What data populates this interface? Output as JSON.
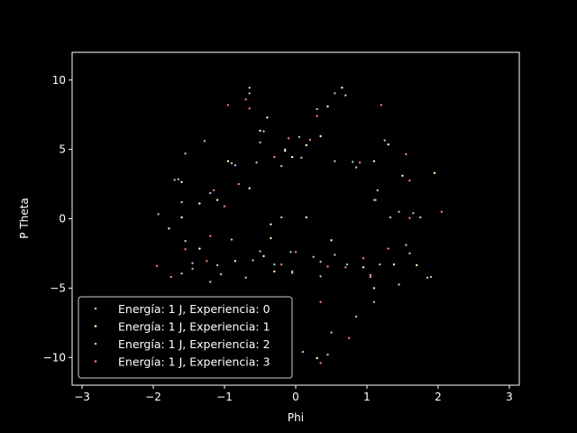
{
  "chart_data": {
    "type": "scatter",
    "xlabel": "Phi",
    "ylabel": "P Theta",
    "xlim": [
      -3.14,
      3.14
    ],
    "ylim": [
      -12,
      12
    ],
    "xticks": [
      -3,
      -2,
      -1,
      0,
      1,
      2,
      3
    ],
    "yticks": [
      -10,
      -5,
      0,
      5,
      10
    ],
    "grid": false,
    "legend_position": "lower-left",
    "background": "#000000",
    "foreground": "#ffffff",
    "series": [
      {
        "name": "Energía: 1 J, Experiencia: 0",
        "color": "#8dd3c7",
        "points": [
          [
            -1.93,
            0.33
          ],
          [
            -1.55,
            -1.6
          ],
          [
            -1.45,
            -3.6
          ],
          [
            -1.2,
            -4.55
          ],
          [
            -0.5,
            -2.35
          ],
          [
            -0.3,
            -3.3
          ],
          [
            -0.07,
            -2.4
          ],
          [
            0.35,
            -3.1
          ],
          [
            0.72,
            -3.3
          ],
          [
            1.18,
            -3.3
          ],
          [
            1.85,
            -4.25
          ],
          [
            1.55,
            -1.9
          ],
          [
            1.33,
            0.1
          ],
          [
            1.12,
            1.35
          ],
          [
            1.25,
            5.65
          ],
          [
            0.8,
            4.1
          ],
          [
            0.55,
            4.15
          ],
          [
            0.3,
            7.9
          ],
          [
            0.08,
            4.4
          ],
          [
            -0.15,
            5.0
          ],
          [
            -0.45,
            6.3
          ],
          [
            -0.55,
            4.05
          ],
          [
            -1.28,
            5.6
          ],
          [
            -0.9,
            4.0
          ],
          [
            -0.65,
            9.05
          ],
          [
            -1.55,
            4.7
          ],
          [
            -1.65,
            2.85
          ],
          [
            0.5,
            -8.2
          ],
          [
            0.45,
            -9.8
          ],
          [
            -0.05,
            -3.8
          ],
          [
            -0.6,
            -3.0
          ],
          [
            1.65,
            0.4
          ]
        ]
      },
      {
        "name": "Energía: 1 J, Experiencia: 1",
        "color": "#ffffb3",
        "points": [
          [
            -1.78,
            -0.7
          ],
          [
            -1.6,
            0.1
          ],
          [
            -1.35,
            -2.15
          ],
          [
            -1.1,
            1.35
          ],
          [
            -0.85,
            -3.05
          ],
          [
            -0.3,
            -3.8
          ],
          [
            0.15,
            0.1
          ],
          [
            -0.35,
            -1.4
          ],
          [
            -0.45,
            -2.7
          ],
          [
            0.5,
            -1.55
          ],
          [
            0.95,
            -3.5
          ],
          [
            1.1,
            -5.0
          ],
          [
            1.38,
            -3.3
          ],
          [
            1.7,
            -3.35
          ],
          [
            1.95,
            3.3
          ],
          [
            1.5,
            3.1
          ],
          [
            1.3,
            5.35
          ],
          [
            1.1,
            4.15
          ],
          [
            0.65,
            9.45
          ],
          [
            0.45,
            8.1
          ],
          [
            0.15,
            5.3
          ],
          [
            -0.15,
            4.9
          ],
          [
            -0.4,
            7.3
          ],
          [
            -0.5,
            6.35
          ],
          [
            -0.65,
            2.2
          ],
          [
            -0.95,
            4.15
          ],
          [
            -1.35,
            1.1
          ],
          [
            -1.6,
            2.65
          ],
          [
            0.3,
            -10.05
          ],
          [
            -0.35,
            -0.4
          ],
          [
            -0.05,
            4.45
          ],
          [
            0.35,
            5.95
          ]
        ]
      },
      {
        "name": "Energía: 1 J, Experiencia: 2",
        "color": "#bebada",
        "points": [
          [
            -1.6,
            -3.95
          ],
          [
            -1.45,
            -3.2
          ],
          [
            -1.05,
            -4.0
          ],
          [
            -0.9,
            -1.5
          ],
          [
            -0.7,
            -4.25
          ],
          [
            -0.2,
            0.1
          ],
          [
            -0.05,
            -3.9
          ],
          [
            0.25,
            -2.75
          ],
          [
            0.55,
            -2.6
          ],
          [
            1.05,
            -4.05
          ],
          [
            1.1,
            -6.0
          ],
          [
            1.45,
            -4.75
          ],
          [
            1.9,
            -4.2
          ],
          [
            1.75,
            0.1
          ],
          [
            1.45,
            0.5
          ],
          [
            1.15,
            2.05
          ],
          [
            0.85,
            3.7
          ],
          [
            0.7,
            8.9
          ],
          [
            0.55,
            9.05
          ],
          [
            0.05,
            5.9
          ],
          [
            -0.2,
            3.8
          ],
          [
            -0.65,
            9.45
          ],
          [
            -0.5,
            5.5
          ],
          [
            -0.85,
            3.85
          ],
          [
            -1.2,
            1.85
          ],
          [
            -1.7,
            2.8
          ],
          [
            -1.6,
            1.2
          ],
          [
            0.1,
            -9.6
          ],
          [
            0.85,
            -7.05
          ],
          [
            1.6,
            -2.5
          ],
          [
            -1.1,
            -3.35
          ],
          [
            0.35,
            -4.15
          ]
        ]
      },
      {
        "name": "Energía: 1 J, Experiencia: 3",
        "color": "#fb8072",
        "points": [
          [
            -1.95,
            -3.4
          ],
          [
            -1.75,
            -4.2
          ],
          [
            -1.55,
            -2.2
          ],
          [
            -1.2,
            -1.25
          ],
          [
            -1.15,
            2.05
          ],
          [
            -0.95,
            8.2
          ],
          [
            -0.7,
            8.6
          ],
          [
            -0.65,
            7.95
          ],
          [
            -0.2,
            -3.3
          ],
          [
            0.0,
            -2.4
          ],
          [
            0.35,
            -6.0
          ],
          [
            0.7,
            -3.5
          ],
          [
            0.95,
            -2.85
          ],
          [
            1.05,
            -4.2
          ],
          [
            1.1,
            1.35
          ],
          [
            1.3,
            -2.15
          ],
          [
            1.6,
            0.05
          ],
          [
            1.6,
            2.75
          ],
          [
            2.05,
            0.5
          ],
          [
            1.55,
            4.65
          ],
          [
            1.2,
            8.2
          ],
          [
            0.9,
            4.05
          ],
          [
            0.3,
            7.4
          ],
          [
            0.2,
            5.7
          ],
          [
            -0.1,
            5.8
          ],
          [
            -0.3,
            4.45
          ],
          [
            -0.8,
            2.5
          ],
          [
            -1.0,
            0.9
          ],
          [
            0.75,
            -8.6
          ],
          [
            0.35,
            -10.4
          ],
          [
            -1.25,
            -3.05
          ],
          [
            0.45,
            -3.45
          ]
        ]
      }
    ]
  }
}
